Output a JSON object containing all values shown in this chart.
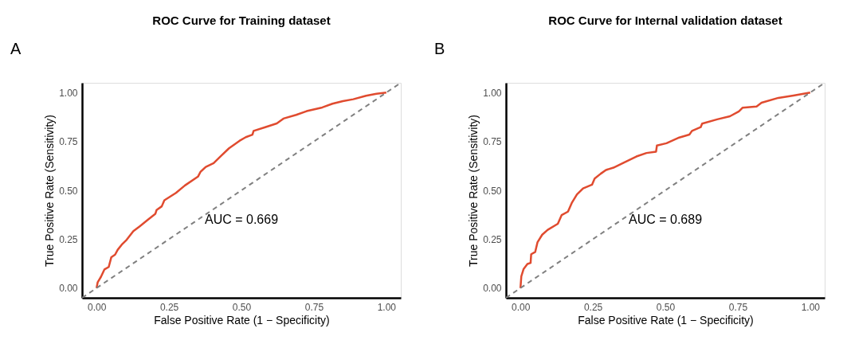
{
  "chart_data": [
    {
      "type": "line",
      "title": "ROC Curve for Training dataset",
      "xlabel": "False Positive Rate (1 − Specificity)",
      "ylabel": "True Positive Rate (Sensitivity)",
      "annotations": [
        "A",
        "AUC = 0.669"
      ],
      "xlim": [
        -0.05,
        1.05
      ],
      "ylim": [
        -0.05,
        1.05
      ],
      "xticks": [
        {
          "value": 0,
          "label": "0.00"
        },
        {
          "value": 0.25,
          "label": "0.25"
        },
        {
          "value": 0.5,
          "label": "0.50"
        },
        {
          "value": 0.75,
          "label": "0.75"
        },
        {
          "value": 1,
          "label": "1.00"
        }
      ],
      "yticks": [
        {
          "value": 0,
          "label": "0.00"
        },
        {
          "value": 0.25,
          "label": "0.25"
        },
        {
          "value": 0.5,
          "label": "0.50"
        },
        {
          "value": 0.75,
          "label": "0.75"
        },
        {
          "value": 1,
          "label": "1.00"
        }
      ],
      "grid": false,
      "series": [
        {
          "color": "#e04b2f",
          "line_style": "solid",
          "x": [
            0,
            0.004,
            0.015,
            0.027,
            0.042,
            0.051,
            0.064,
            0.073,
            0.087,
            0.104,
            0.127,
            0.149,
            0.176,
            0.203,
            0.207,
            0.225,
            0.234,
            0.274,
            0.305,
            0.35,
            0.359,
            0.377,
            0.404,
            0.43,
            0.457,
            0.493,
            0.515,
            0.538,
            0.542,
            0.582,
            0.622,
            0.645,
            0.689,
            0.725,
            0.779,
            0.814,
            0.85,
            0.886,
            0.93,
            0.966,
            1
          ],
          "values": [
            0,
            0.03,
            0.057,
            0.095,
            0.108,
            0.158,
            0.171,
            0.196,
            0.222,
            0.247,
            0.291,
            0.316,
            0.348,
            0.38,
            0.399,
            0.418,
            0.449,
            0.487,
            0.525,
            0.57,
            0.595,
            0.62,
            0.639,
            0.677,
            0.715,
            0.753,
            0.772,
            0.785,
            0.804,
            0.823,
            0.842,
            0.867,
            0.886,
            0.905,
            0.924,
            0.943,
            0.956,
            0.966,
            0.984,
            0.994,
            1
          ]
        },
        {
          "color": "#808080",
          "line_style": "dashed",
          "x": [
            -0.05,
            1.05
          ],
          "values": [
            -0.05,
            1.05
          ]
        }
      ]
    },
    {
      "type": "line",
      "title": "ROC Curve for Internal validation dataset",
      "xlabel": "False Positive Rate (1 − Specificity)",
      "ylabel": "True Positive Rate (Sensitivity)",
      "annotations": [
        "B",
        "AUC = 0.689"
      ],
      "xlim": [
        -0.05,
        1.05
      ],
      "ylim": [
        -0.05,
        1.05
      ],
      "xticks": [
        {
          "value": 0,
          "label": "0.00"
        },
        {
          "value": 0.25,
          "label": "0.25"
        },
        {
          "value": 0.5,
          "label": "0.50"
        },
        {
          "value": 0.75,
          "label": "0.75"
        },
        {
          "value": 1,
          "label": "1.00"
        }
      ],
      "yticks": [
        {
          "value": 0,
          "label": "0.00"
        },
        {
          "value": 0.25,
          "label": "0.25"
        },
        {
          "value": 0.5,
          "label": "0.50"
        },
        {
          "value": 0.75,
          "label": "0.75"
        },
        {
          "value": 1,
          "label": "1.00"
        }
      ],
      "grid": false,
      "series": [
        {
          "color": "#e04b2f",
          "line_style": "solid",
          "x": [
            0,
            0.003,
            0.011,
            0.024,
            0.035,
            0.037,
            0.051,
            0.059,
            0.075,
            0.094,
            0.129,
            0.142,
            0.164,
            0.177,
            0.195,
            0.216,
            0.247,
            0.256,
            0.277,
            0.295,
            0.321,
            0.356,
            0.4,
            0.435,
            0.468,
            0.471,
            0.504,
            0.548,
            0.583,
            0.592,
            0.622,
            0.627,
            0.679,
            0.723,
            0.754,
            0.767,
            0.815,
            0.832,
            0.89,
            0.942,
            1
          ],
          "values": [
            0,
            0.06,
            0.098,
            0.123,
            0.129,
            0.173,
            0.185,
            0.235,
            0.273,
            0.298,
            0.329,
            0.373,
            0.391,
            0.435,
            0.479,
            0.51,
            0.529,
            0.56,
            0.585,
            0.604,
            0.616,
            0.641,
            0.673,
            0.691,
            0.698,
            0.729,
            0.741,
            0.77,
            0.785,
            0.804,
            0.823,
            0.841,
            0.863,
            0.879,
            0.904,
            0.923,
            0.929,
            0.948,
            0.973,
            0.985,
            1
          ]
        },
        {
          "color": "#808080",
          "line_style": "dashed",
          "x": [
            -0.05,
            1.05
          ],
          "values": [
            -0.05,
            1.05
          ]
        }
      ]
    }
  ]
}
